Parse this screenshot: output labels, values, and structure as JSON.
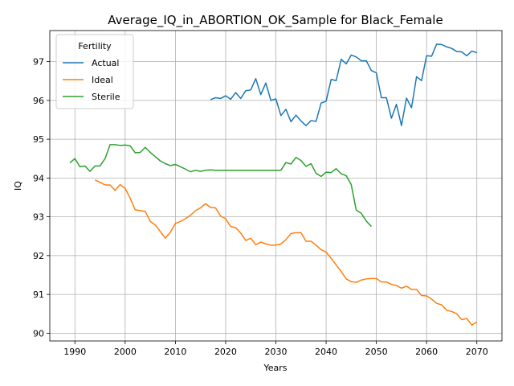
{
  "chart_data": {
    "type": "line",
    "title": "Average_IQ_in_ABORTION_OK_Sample for Black_Female",
    "xlabel": "Years",
    "ylabel": "IQ",
    "xlim": [
      1985,
      2075
    ],
    "ylim": [
      89.8,
      97.8
    ],
    "xticks": [
      1990,
      2000,
      2010,
      2020,
      2030,
      2040,
      2050,
      2060,
      2070
    ],
    "yticks": [
      90,
      91,
      92,
      93,
      94,
      95,
      96,
      97
    ],
    "grid": true,
    "legend": {
      "title": "Fertility",
      "placement": "top-left",
      "entries": [
        "Actual",
        "Ideal",
        "Sterile"
      ]
    },
    "series": [
      {
        "name": "Actual",
        "color": "#1f77b4",
        "points": [
          [
            2017,
            96.02
          ],
          [
            2018,
            96.07
          ],
          [
            2019,
            96.05
          ],
          [
            2020,
            96.12
          ],
          [
            2021,
            96.03
          ],
          [
            2022,
            96.2
          ],
          [
            2023,
            96.05
          ],
          [
            2024,
            96.25
          ],
          [
            2025,
            96.27
          ],
          [
            2026,
            96.56
          ],
          [
            2027,
            96.15
          ],
          [
            2028,
            96.45
          ],
          [
            2029,
            96.0
          ],
          [
            2030,
            96.04
          ],
          [
            2031,
            95.61
          ],
          [
            2032,
            95.77
          ],
          [
            2033,
            95.45
          ],
          [
            2034,
            95.62
          ],
          [
            2035,
            95.47
          ],
          [
            2036,
            95.35
          ],
          [
            2037,
            95.48
          ],
          [
            2038,
            95.46
          ],
          [
            2039,
            95.93
          ],
          [
            2040,
            95.98
          ],
          [
            2041,
            96.54
          ],
          [
            2042,
            96.51
          ],
          [
            2043,
            97.06
          ],
          [
            2044,
            96.94
          ],
          [
            2045,
            97.17
          ],
          [
            2046,
            97.12
          ],
          [
            2047,
            97.02
          ],
          [
            2048,
            97.02
          ],
          [
            2049,
            96.77
          ],
          [
            2050,
            96.71
          ],
          [
            2051,
            96.07
          ],
          [
            2052,
            96.07
          ],
          [
            2053,
            95.54
          ],
          [
            2054,
            95.9
          ],
          [
            2055,
            95.35
          ],
          [
            2056,
            96.06
          ],
          [
            2057,
            95.81
          ],
          [
            2058,
            96.61
          ],
          [
            2059,
            96.51
          ],
          [
            2060,
            97.15
          ],
          [
            2061,
            97.14
          ],
          [
            2062,
            97.45
          ],
          [
            2063,
            97.44
          ],
          [
            2064,
            97.38
          ],
          [
            2065,
            97.34
          ],
          [
            2066,
            97.26
          ],
          [
            2067,
            97.25
          ],
          [
            2068,
            97.15
          ],
          [
            2069,
            97.27
          ],
          [
            2070,
            97.23
          ]
        ]
      },
      {
        "name": "Ideal",
        "color": "#ff7f0e",
        "points": [
          [
            1994,
            93.95
          ],
          [
            1995,
            93.89
          ],
          [
            1996,
            93.82
          ],
          [
            1997,
            93.82
          ],
          [
            1998,
            93.68
          ],
          [
            1999,
            93.83
          ],
          [
            2000,
            93.73
          ],
          [
            2001,
            93.48
          ],
          [
            2002,
            93.18
          ],
          [
            2003,
            93.16
          ],
          [
            2004,
            93.14
          ],
          [
            2005,
            92.88
          ],
          [
            2006,
            92.79
          ],
          [
            2007,
            92.62
          ],
          [
            2008,
            92.45
          ],
          [
            2009,
            92.6
          ],
          [
            2010,
            92.83
          ],
          [
            2011,
            92.88
          ],
          [
            2012,
            92.95
          ],
          [
            2013,
            93.04
          ],
          [
            2014,
            93.16
          ],
          [
            2015,
            93.23
          ],
          [
            2016,
            93.34
          ],
          [
            2017,
            93.24
          ],
          [
            2018,
            93.23
          ],
          [
            2019,
            93.02
          ],
          [
            2020,
            92.95
          ],
          [
            2021,
            92.75
          ],
          [
            2022,
            92.72
          ],
          [
            2023,
            92.58
          ],
          [
            2024,
            92.39
          ],
          [
            2025,
            92.45
          ],
          [
            2026,
            92.28
          ],
          [
            2027,
            92.35
          ],
          [
            2028,
            92.3
          ],
          [
            2029,
            92.27
          ],
          [
            2030,
            92.27
          ],
          [
            2031,
            92.3
          ],
          [
            2032,
            92.41
          ],
          [
            2033,
            92.57
          ],
          [
            2034,
            92.59
          ],
          [
            2035,
            92.59
          ],
          [
            2036,
            92.37
          ],
          [
            2037,
            92.37
          ],
          [
            2038,
            92.27
          ],
          [
            2039,
            92.15
          ],
          [
            2040,
            92.09
          ],
          [
            2041,
            91.93
          ],
          [
            2042,
            91.76
          ],
          [
            2043,
            91.59
          ],
          [
            2044,
            91.4
          ],
          [
            2045,
            91.33
          ],
          [
            2046,
            91.31
          ],
          [
            2047,
            91.37
          ],
          [
            2048,
            91.4
          ],
          [
            2049,
            91.41
          ],
          [
            2050,
            91.41
          ],
          [
            2051,
            91.32
          ],
          [
            2052,
            91.32
          ],
          [
            2053,
            91.26
          ],
          [
            2054,
            91.23
          ],
          [
            2055,
            91.16
          ],
          [
            2056,
            91.21
          ],
          [
            2057,
            91.13
          ],
          [
            2058,
            91.13
          ],
          [
            2059,
            90.97
          ],
          [
            2060,
            90.96
          ],
          [
            2061,
            90.88
          ],
          [
            2062,
            90.77
          ],
          [
            2063,
            90.73
          ],
          [
            2064,
            90.59
          ],
          [
            2065,
            90.56
          ],
          [
            2066,
            90.5
          ],
          [
            2067,
            90.35
          ],
          [
            2068,
            90.38
          ],
          [
            2069,
            90.21
          ],
          [
            2070,
            90.29
          ]
        ]
      },
      {
        "name": "Sterile",
        "color": "#2ca02c",
        "points": [
          [
            1989,
            94.39
          ],
          [
            1990,
            94.5
          ],
          [
            1991,
            94.29
          ],
          [
            1992,
            94.31
          ],
          [
            1993,
            94.17
          ],
          [
            1994,
            94.31
          ],
          [
            1995,
            94.31
          ],
          [
            1996,
            94.5
          ],
          [
            1997,
            94.86
          ],
          [
            1998,
            94.86
          ],
          [
            1999,
            94.84
          ],
          [
            2000,
            94.85
          ],
          [
            2001,
            94.83
          ],
          [
            2002,
            94.65
          ],
          [
            2003,
            94.66
          ],
          [
            2004,
            94.79
          ],
          [
            2005,
            94.66
          ],
          [
            2006,
            94.55
          ],
          [
            2007,
            94.44
          ],
          [
            2008,
            94.37
          ],
          [
            2009,
            94.32
          ],
          [
            2010,
            94.35
          ],
          [
            2011,
            94.29
          ],
          [
            2012,
            94.23
          ],
          [
            2013,
            94.16
          ],
          [
            2014,
            94.2
          ],
          [
            2015,
            94.17
          ],
          [
            2016,
            94.2
          ],
          [
            2017,
            94.21
          ],
          [
            2018,
            94.2
          ],
          [
            2019,
            94.2
          ],
          [
            2020,
            94.2
          ],
          [
            2021,
            94.2
          ],
          [
            2022,
            94.2
          ],
          [
            2023,
            94.2
          ],
          [
            2024,
            94.2
          ],
          [
            2025,
            94.2
          ],
          [
            2026,
            94.2
          ],
          [
            2027,
            94.2
          ],
          [
            2028,
            94.2
          ],
          [
            2029,
            94.2
          ],
          [
            2030,
            94.2
          ],
          [
            2031,
            94.2
          ],
          [
            2032,
            94.4
          ],
          [
            2033,
            94.36
          ],
          [
            2034,
            94.53
          ],
          [
            2035,
            94.45
          ],
          [
            2036,
            94.3
          ],
          [
            2037,
            94.37
          ],
          [
            2038,
            94.12
          ],
          [
            2039,
            94.04
          ],
          [
            2040,
            94.15
          ],
          [
            2041,
            94.14
          ],
          [
            2042,
            94.24
          ],
          [
            2043,
            94.11
          ],
          [
            2044,
            94.06
          ],
          [
            2045,
            93.83
          ],
          [
            2046,
            93.17
          ],
          [
            2047,
            93.09
          ],
          [
            2048,
            92.89
          ],
          [
            2049,
            92.75
          ]
        ]
      }
    ]
  }
}
